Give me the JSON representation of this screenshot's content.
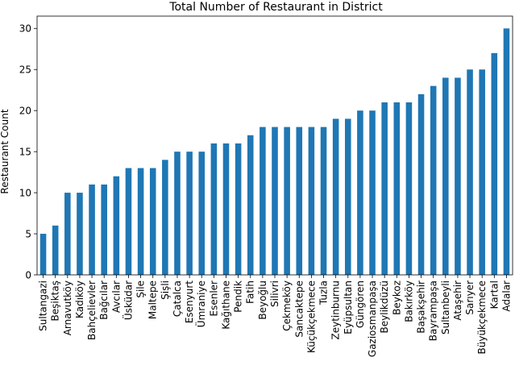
{
  "chart_data": {
    "type": "bar",
    "title": "Total Number of Restaurant in District",
    "xlabel": "",
    "ylabel": "Restaurant Count",
    "ylim": [
      0,
      31.5
    ],
    "yticks": [
      0,
      5,
      10,
      15,
      20,
      25,
      30
    ],
    "grid": false,
    "legend": "none",
    "bar_color": "#1f77b4",
    "categories": [
      "Sultangazi",
      "Beşiktaş",
      "Arnavutköy",
      "Kadıköy",
      "Bahçelievler",
      "Bağcılar",
      "Avcılar",
      "Üsküdar",
      "Şile",
      "Maltepe",
      "Şişli",
      "Çatalca",
      "Esenyurt",
      "Ümraniye",
      "Esenler",
      "Kağıthane",
      "Pendik",
      "Fatih",
      "Beyoğlu",
      "Silivri",
      "Çekmeköy",
      "Sancaktepe",
      "Küçükçekmece",
      "Tuzla",
      "Zeytinburnu",
      "Eyüpsultan",
      "Güngören",
      "Gaziosmanpaşa",
      "Beylikdüzü",
      "Beykoz",
      "Bakırköy",
      "Başakşehir",
      "Bayrampaşa",
      "Sultanbeyli",
      "Ataşehir",
      "Sarıyer",
      "Büyükçekmece",
      "Kartal",
      "Adalar"
    ],
    "values": [
      5,
      6,
      10,
      10,
      11,
      11,
      12,
      13,
      13,
      13,
      14,
      15,
      15,
      15,
      16,
      16,
      16,
      17,
      18,
      18,
      18,
      18,
      18,
      18,
      19,
      19,
      20,
      20,
      21,
      21,
      21,
      22,
      23,
      24,
      24,
      25,
      25,
      27,
      30
    ]
  }
}
